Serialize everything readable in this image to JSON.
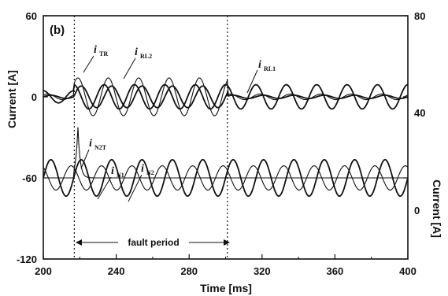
{
  "chart_data": {
    "type": "line",
    "panel_label": "(b)",
    "xlabel": "Time [ms]",
    "ylabel_left": "Current [A]",
    "ylabel_right": "Current [A]",
    "xlim": [
      200,
      400
    ],
    "ylim_left": [
      -120,
      60
    ],
    "ylim_right": [
      -40,
      80
    ],
    "xticks": [
      "200",
      "240",
      "280",
      "320",
      "360",
      "400"
    ],
    "yticks_left": [
      "60",
      "0",
      "-60",
      "-120"
    ],
    "yticks_right": [
      "80",
      "40",
      "0"
    ],
    "fault_start": 217,
    "fault_end": 301,
    "fault_annotation": "fault period",
    "series": [
      {
        "name": "iTR",
        "main": "i",
        "sub": "TR",
        "axis": "left",
        "amplitude": 8,
        "offset": 0,
        "frequency_hz": 60,
        "phase_deg": 0,
        "active": "fault"
      },
      {
        "name": "iRL2",
        "main": "i",
        "sub": "RL2",
        "axis": "left",
        "amplitude": 14,
        "offset": 0,
        "frequency_hz": 60,
        "phase_deg": 40,
        "active": "fault"
      },
      {
        "name": "iRL1",
        "main": "i",
        "sub": "RL1",
        "axis": "left",
        "amplitude": 9,
        "offset": 0,
        "frequency_hz": 60,
        "phase_deg": 90,
        "active": "all"
      },
      {
        "name": "iN2T",
        "main": "i",
        "sub": "N2T",
        "axis": "right",
        "peak": 25,
        "peak_time": 219,
        "active": "spike"
      },
      {
        "name": "iN1",
        "main": "i",
        "sub": "N1",
        "axis": "right",
        "amplitude": 9,
        "offset": 0,
        "frequency_hz": 60,
        "phase_deg": 0,
        "active": "all"
      },
      {
        "name": "iN2",
        "main": "i",
        "sub": "N2",
        "axis": "right",
        "amplitude": 6,
        "offset": 0,
        "frequency_hz": 60,
        "phase_deg": 120,
        "active": "all"
      }
    ]
  }
}
